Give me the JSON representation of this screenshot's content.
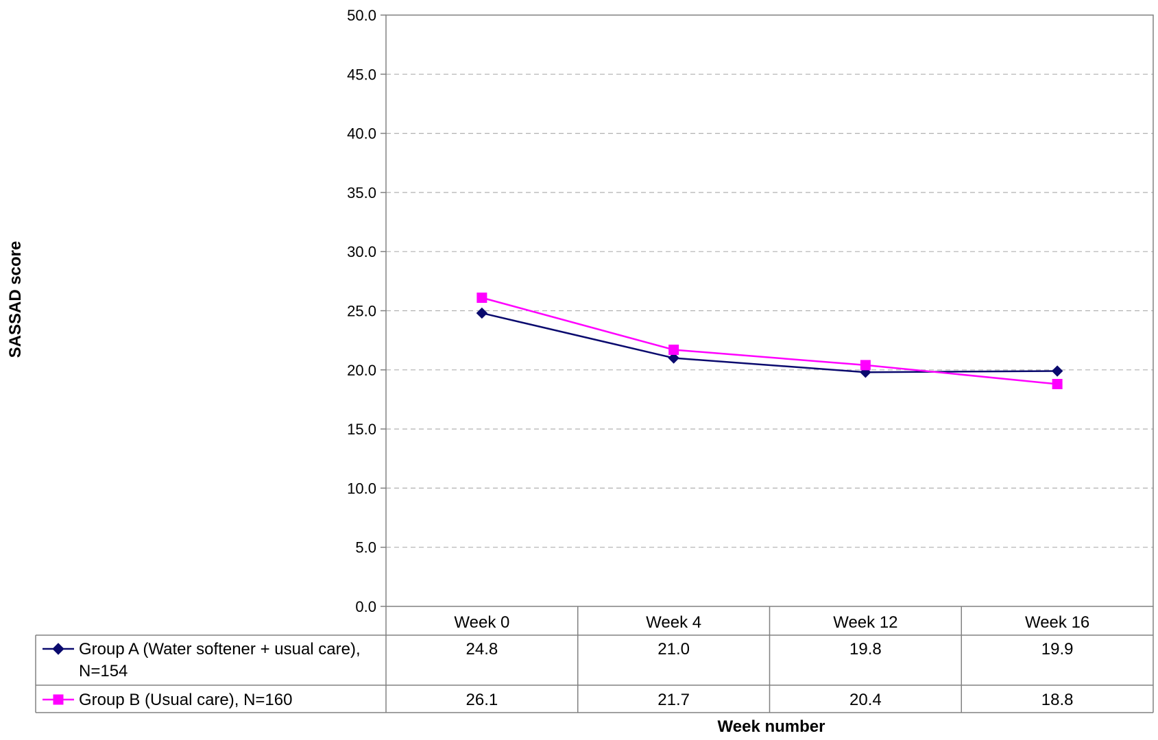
{
  "chart_data": {
    "type": "line",
    "title": "",
    "xlabel": "Week number",
    "ylabel": "SASSAD score",
    "ylim": [
      0,
      50
    ],
    "yticks": [
      "0.0",
      "5.0",
      "10.0",
      "15.0",
      "20.0",
      "25.0",
      "30.0",
      "35.0",
      "40.0",
      "45.0",
      "50.0"
    ],
    "grid": "horizontal dashed",
    "legend": "data table below chart",
    "categories": [
      "Week 0",
      "Week 4",
      "Week 12",
      "Week 16"
    ],
    "series": [
      {
        "name": "Group A (Water softener + usual care),",
        "name_line2": "N=154",
        "marker": "diamond",
        "color": "#0a0a6e",
        "values": [
          24.8,
          21.0,
          19.8,
          19.9
        ],
        "labels": [
          "24.8",
          "21.0",
          "19.8",
          "19.9"
        ]
      },
      {
        "name": "Group B (Usual care), N=160",
        "marker": "square",
        "color": "#ff00ff",
        "values": [
          26.1,
          21.7,
          20.4,
          18.8
        ],
        "labels": [
          "26.1",
          "21.7",
          "20.4",
          "18.8"
        ]
      }
    ]
  }
}
